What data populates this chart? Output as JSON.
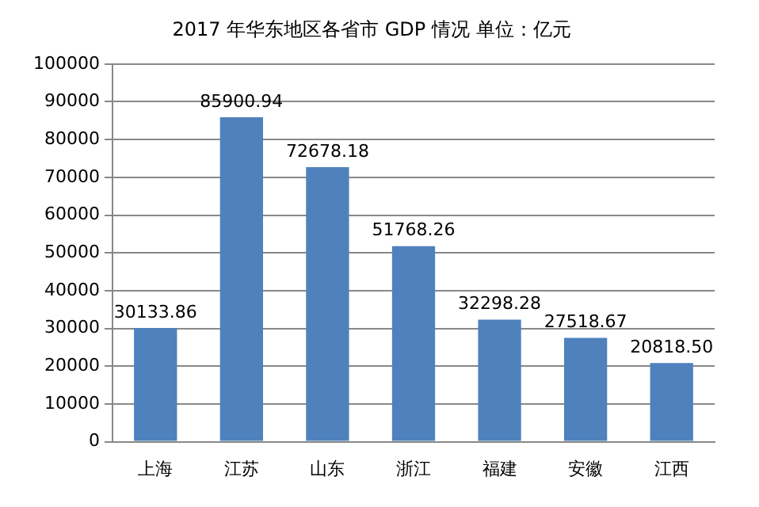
{
  "chart_data": {
    "type": "bar",
    "title": "2017 年华东地区各省市 GDP 情况 单位：亿元",
    "categories": [
      "上海",
      "江苏",
      "山东",
      "浙江",
      "福建",
      "安徽",
      "江西"
    ],
    "values": [
      30133.86,
      85900.94,
      72678.18,
      51768.26,
      32298.28,
      27518.67,
      20818.5
    ],
    "value_labels": [
      "30133.86",
      "85900.94",
      "72678.18",
      "51768.26",
      "32298.28",
      "27518.67",
      "20818.50"
    ],
    "color": "#4f81bd",
    "ylim": [
      0,
      100000
    ],
    "yticks": [
      0,
      10000,
      20000,
      30000,
      40000,
      50000,
      60000,
      70000,
      80000,
      90000,
      100000
    ],
    "grid": "y"
  }
}
